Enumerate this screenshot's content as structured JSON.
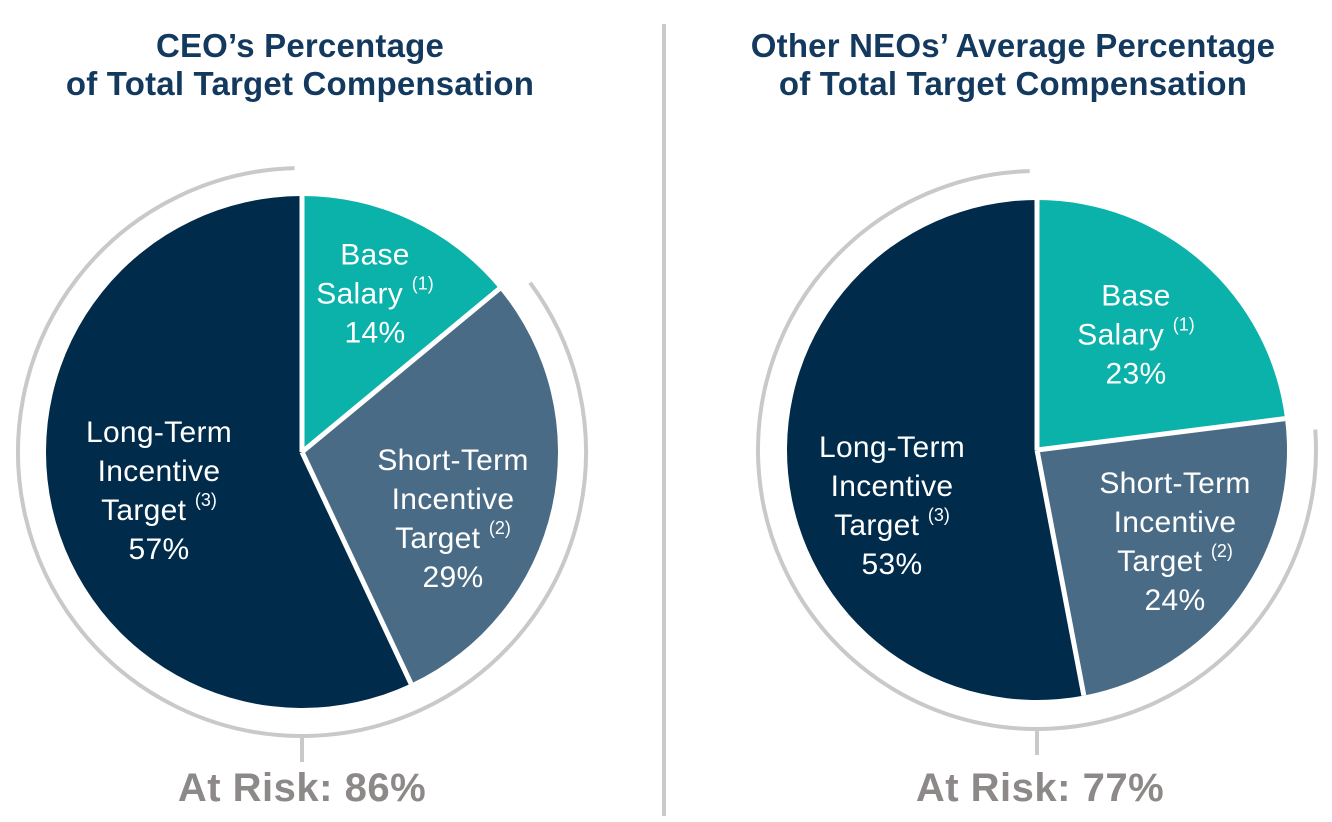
{
  "colors": {
    "teal": "#0AB2A9",
    "slate": "#4A6B85",
    "navy": "#002B4A",
    "title_text": "#14395E",
    "at_risk_text": "#8C8988",
    "ring": "#C9C9C9",
    "slice_separator": "#FFFFFF",
    "divider": "#C9CACB"
  },
  "chart_data": [
    {
      "type": "pie",
      "title_line1": "CEO’s Percentage",
      "title_line2": "of Total Target Compensation",
      "at_risk_label": "At Risk: 86%",
      "at_risk_pct": 86,
      "start_angle_deg": 0,
      "direction": "clockwise",
      "ring": "gray arc ring spans the at-risk slices with a downward tick at 6 o'clock",
      "slices": [
        {
          "name": "Base Salary",
          "label_lines": [
            "Base",
            "Salary"
          ],
          "footnote": "(1)",
          "pct_label": "14%",
          "value": 14,
          "color": "#0AB2A9",
          "at_risk": false
        },
        {
          "name": "Short-Term Incentive Target",
          "label_lines": [
            "Short-Term",
            "Incentive",
            "Target"
          ],
          "footnote": "(2)",
          "pct_label": "29%",
          "value": 29,
          "color": "#4A6B85",
          "at_risk": true
        },
        {
          "name": "Long-Term Incentive Target",
          "label_lines": [
            "Long-Term",
            "Incentive",
            "Target"
          ],
          "footnote": "(3)",
          "pct_label": "57%",
          "value": 57,
          "color": "#002B4A",
          "at_risk": true
        }
      ]
    },
    {
      "type": "pie",
      "title_line1": "Other NEOs’ Average Percentage",
      "title_line2": "of Total Target Compensation",
      "at_risk_label": "At Risk: 77%",
      "at_risk_pct": 77,
      "start_angle_deg": 0,
      "direction": "clockwise",
      "ring": "gray arc ring spans the at-risk slices with a downward tick at 6 o'clock",
      "slices": [
        {
          "name": "Base Salary",
          "label_lines": [
            "Base",
            "Salary"
          ],
          "footnote": "(1)",
          "pct_label": "23%",
          "value": 23,
          "color": "#0AB2A9",
          "at_risk": false
        },
        {
          "name": "Short-Term Incentive Target",
          "label_lines": [
            "Short-Term",
            "Incentive",
            "Target"
          ],
          "footnote": "(2)",
          "pct_label": "24%",
          "value": 24,
          "color": "#4A6B85",
          "at_risk": true
        },
        {
          "name": "Long-Term Incentive Target",
          "label_lines": [
            "Long-Term",
            "Incentive",
            "Target"
          ],
          "footnote": "(3)",
          "pct_label": "53%",
          "value": 53,
          "color": "#002B4A",
          "at_risk": true
        }
      ]
    }
  ]
}
